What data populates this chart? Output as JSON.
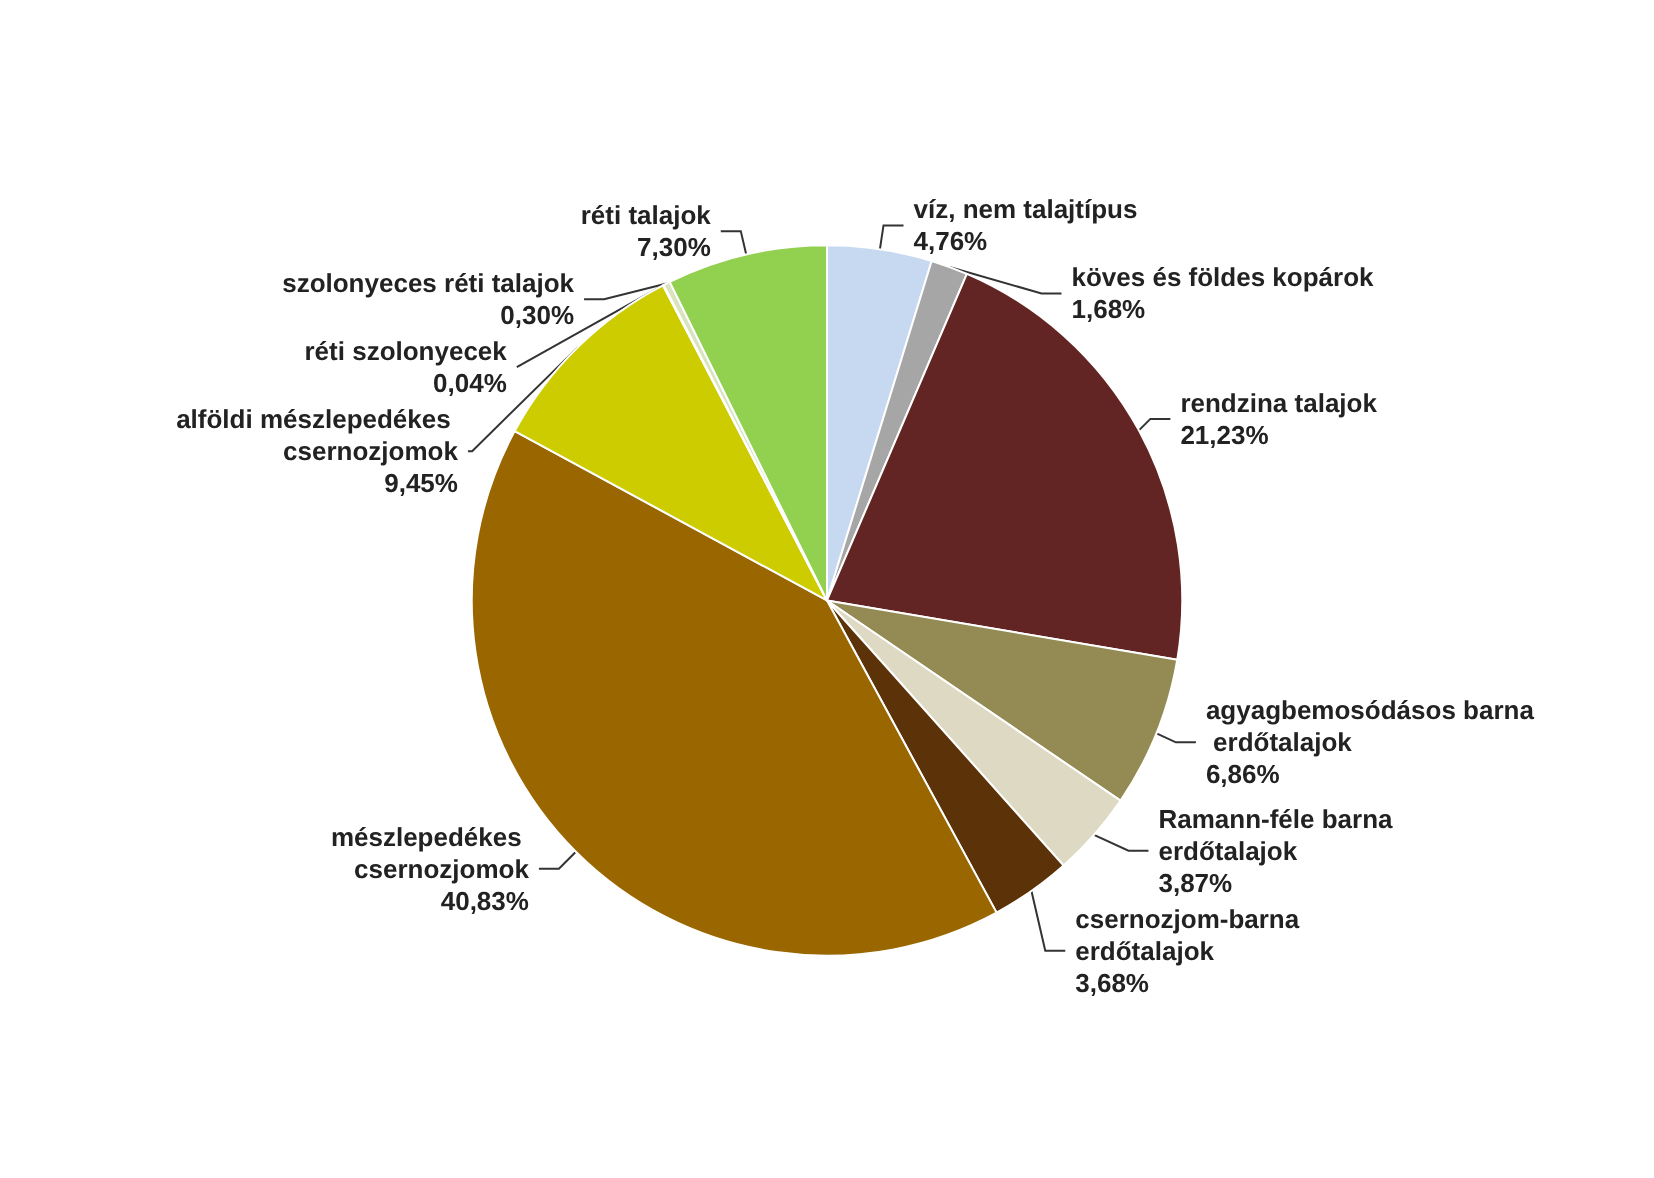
{
  "chart_data": {
    "type": "pie",
    "categories": [
      "víz, nem talajtípus",
      "köves és földes kopárok",
      "rendzina talajok",
      "agyagbemosódásos barna erdőtalajok",
      "Ramann-féle barna erdőtalajok",
      "csernozjom-barna erdőtalajok",
      "mészlepedékes csernozjomok",
      "alföldi mészlepedékes csernozjomok",
      "réti szolonyecek",
      "szolonyeces réti talajok",
      "réti talajok"
    ],
    "values": [
      4.76,
      1.68,
      21.23,
      6.86,
      3.87,
      3.68,
      40.83,
      9.45,
      0.04,
      0.3,
      7.3
    ],
    "value_labels": [
      "4,76%",
      "1,68%",
      "21,23%",
      "6,86%",
      "3,87%",
      "3,68%",
      "40,83%",
      "9,45%",
      "0,04%",
      "0,30%",
      "7,30%"
    ],
    "colors": [
      "#c6d9f1",
      "#a6a6a6",
      "#632523",
      "#948a54",
      "#ddd9c3",
      "#5c3208",
      "#996600",
      "#cccc00",
      "#e6edd0",
      "#d7e4bd",
      "#92d050"
    ],
    "legend": false
  }
}
